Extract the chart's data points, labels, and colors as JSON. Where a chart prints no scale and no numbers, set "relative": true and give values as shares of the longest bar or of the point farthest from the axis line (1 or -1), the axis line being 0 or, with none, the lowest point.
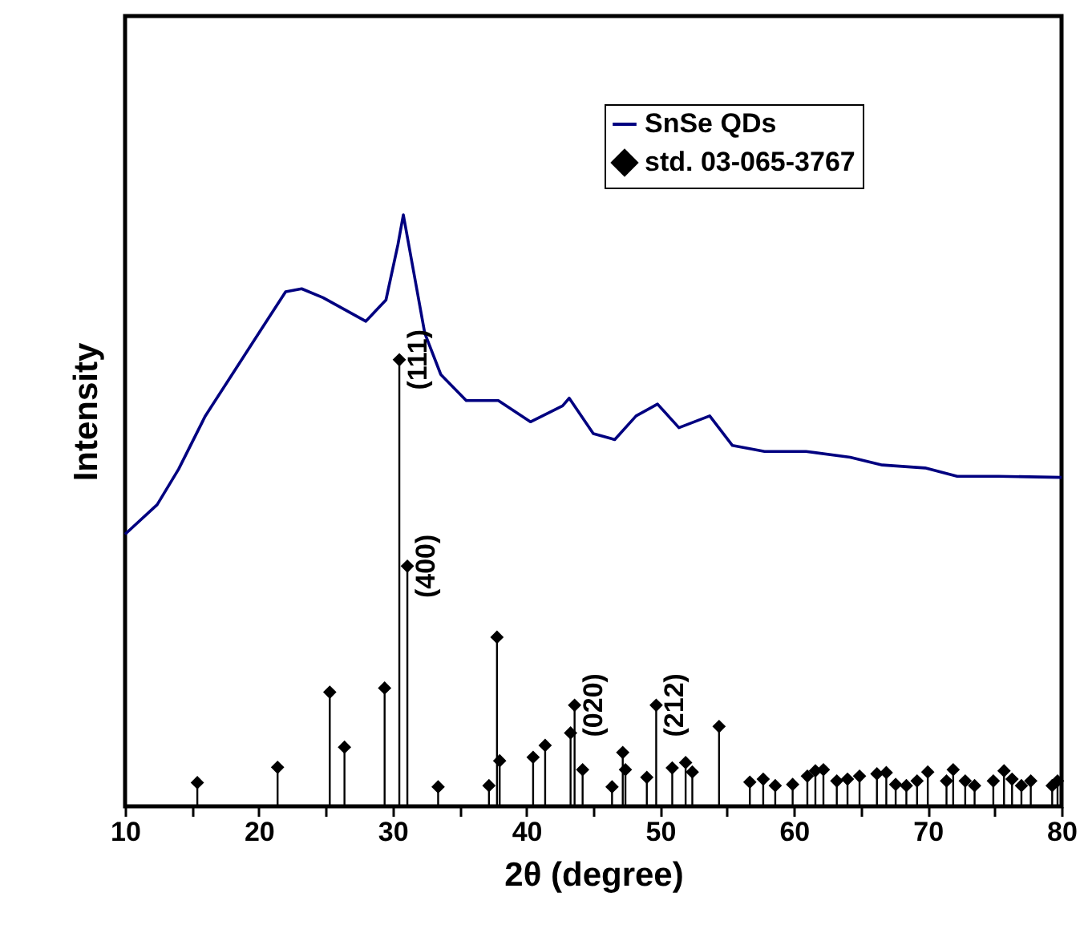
{
  "chart_data": {
    "type": "line",
    "relative": true,
    "xlabel": "2θ (degree)",
    "ylabel": "Intensity",
    "xlim": [
      10,
      80
    ],
    "xticks": [
      10,
      {
        "value": 15,
        "label": null
      },
      20,
      {
        "value": 25,
        "label": null
      },
      30,
      {
        "value": 35,
        "label": null
      },
      40,
      {
        "value": 45,
        "label": null
      },
      50,
      {
        "value": 55,
        "label": null
      },
      60,
      {
        "value": 65,
        "label": null
      },
      70,
      {
        "value": 75,
        "label": null
      },
      80
    ],
    "legend": "top right",
    "grid": false,
    "line_style": "solid",
    "series": [
      {
        "name": "SnSe QDs",
        "color": "#000080",
        "x": [
          10.0,
          12.4,
          14.0,
          16.0,
          18.0,
          20.0,
          22.0,
          23.2,
          24.8,
          26.4,
          28.0,
          29.5,
          30.4,
          30.8,
          31.6,
          32.4,
          33.6,
          35.5,
          37.9,
          40.3,
          42.7,
          43.2,
          45.0,
          46.6,
          48.2,
          49.8,
          51.4,
          53.7,
          55.4,
          57.8,
          60.9,
          64.2,
          66.6,
          69.8,
          72.2,
          75.3,
          80.0
        ],
        "values": [
          0.46,
          0.51,
          0.57,
          0.66,
          0.73,
          0.8,
          0.87,
          0.875,
          0.86,
          0.84,
          0.82,
          0.856,
          0.95,
          1.0,
          0.9,
          0.8,
          0.73,
          0.686,
          0.686,
          0.65,
          0.677,
          0.69,
          0.63,
          0.62,
          0.66,
          0.68,
          0.64,
          0.66,
          0.61,
          0.6,
          0.6,
          0.59,
          0.577,
          0.572,
          0.558,
          0.558,
          0.556
        ]
      },
      {
        "name": "std. 03-065-3767",
        "color": "#000000",
        "type": "lollipop",
        "marker": "diamond",
        "x": [
          15.4,
          21.4,
          25.3,
          26.4,
          29.4,
          30.5,
          31.1,
          33.4,
          37.2,
          37.8,
          38.0,
          40.5,
          41.4,
          43.3,
          43.6,
          44.2,
          46.4,
          47.2,
          47.4,
          49.0,
          49.7,
          50.9,
          51.9,
          52.4,
          54.4,
          56.7,
          57.7,
          58.6,
          59.9,
          61.0,
          61.6,
          62.2,
          63.2,
          64.0,
          64.9,
          66.2,
          66.9,
          67.6,
          68.4,
          69.2,
          70.0,
          71.4,
          71.9,
          72.8,
          73.5,
          74.9,
          75.7,
          76.3,
          77.0,
          77.7,
          79.3,
          79.7
        ],
        "values": [
          0.04,
          0.066,
          0.193,
          0.1,
          0.2,
          0.755,
          0.406,
          0.033,
          0.035,
          0.286,
          0.077,
          0.083,
          0.103,
          0.124,
          0.171,
          0.062,
          0.033,
          0.091,
          0.062,
          0.049,
          0.171,
          0.065,
          0.074,
          0.058,
          0.135,
          0.041,
          0.046,
          0.035,
          0.037,
          0.051,
          0.06,
          0.062,
          0.043,
          0.046,
          0.051,
          0.055,
          0.057,
          0.037,
          0.035,
          0.043,
          0.058,
          0.043,
          0.062,
          0.043,
          0.035,
          0.043,
          0.06,
          0.046,
          0.035,
          0.043,
          0.035,
          0.043
        ]
      }
    ],
    "annotations": [
      {
        "text": "(111)",
        "x": 30.5,
        "y": 0.755
      },
      {
        "text": "(400)",
        "x": 31.1,
        "y": 0.406
      },
      {
        "text": "(020)",
        "x": 43.6,
        "y": 0.171
      },
      {
        "text": "(212)",
        "x": 49.7,
        "y": 0.171
      }
    ]
  }
}
